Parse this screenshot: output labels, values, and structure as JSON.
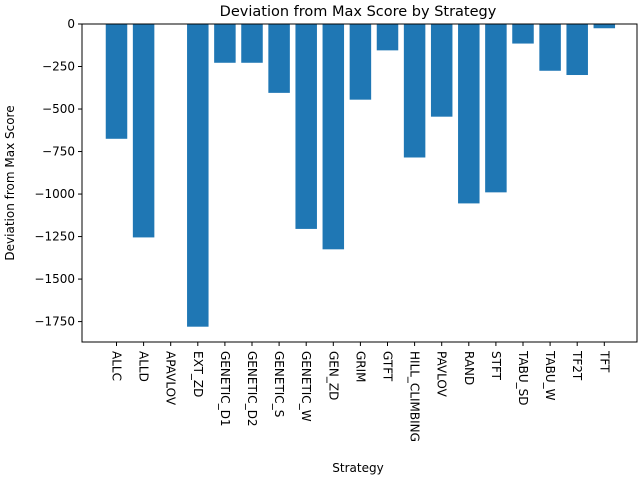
{
  "chart_data": {
    "type": "bar",
    "title": "Deviation from Max Score by Strategy",
    "xlabel": "Strategy",
    "ylabel": "Deviation from Max Score",
    "categories": [
      "ALLC",
      "ALLD",
      "APAVLOV",
      "EXT_ZD",
      "GENETIC_D1",
      "GENETIC_D2",
      "GENETIC_S",
      "GENETIC_W",
      "GEN_ZD",
      "GRIM",
      "GTFT",
      "HILL_CLIMBING",
      "PAVLOV",
      "RAND",
      "STFT",
      "TABU_SD",
      "TABU_W",
      "TF2T",
      "TFT"
    ],
    "values": [
      -675,
      -1255,
      0,
      -1780,
      -228,
      -228,
      -405,
      -1205,
      -1325,
      -445,
      -155,
      -785,
      -545,
      -1055,
      -990,
      -115,
      -275,
      -300,
      -25
    ],
    "ylim": [
      -1870,
      0
    ],
    "yticks": [
      0,
      -250,
      -500,
      -750,
      -1000,
      -1250,
      -1500,
      -1750
    ],
    "ytick_labels": [
      "0",
      "−250",
      "−500",
      "−750",
      "−1000",
      "−1250",
      "−1500",
      "−1750"
    ],
    "grid": false,
    "bar_color": "#1f77b4"
  }
}
